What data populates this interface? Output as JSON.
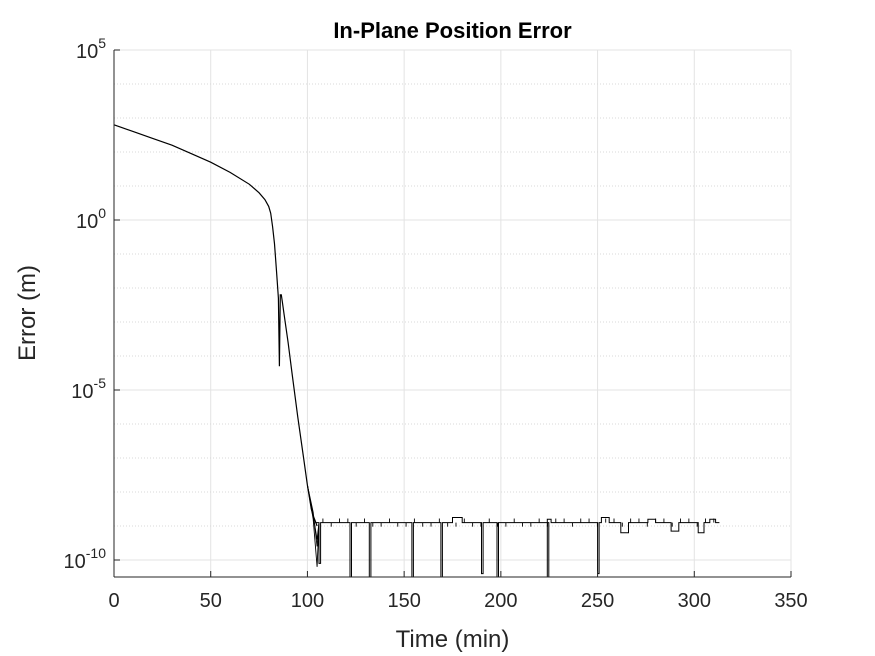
{
  "chart_data": {
    "type": "line",
    "title": "In-Plane Position Error",
    "xlabel": "Time (min)",
    "ylabel": "Error (m)",
    "xlim": [
      0,
      350
    ],
    "ylim_log10": [
      -10.5,
      5
    ],
    "y_scale": "log",
    "grid": true,
    "minor_grid": true,
    "line_color": "#000000",
    "x_ticks": [
      {
        "value": 0,
        "label": "0"
      },
      {
        "value": 50,
        "label": "50"
      },
      {
        "value": 100,
        "label": "100"
      },
      {
        "value": 150,
        "label": "150"
      },
      {
        "value": 200,
        "label": "200"
      },
      {
        "value": 250,
        "label": "250"
      },
      {
        "value": 300,
        "label": "300"
      },
      {
        "value": 350,
        "label": "350"
      }
    ],
    "y_ticks": [
      {
        "log10": 5,
        "base": "10",
        "exp": "5"
      },
      {
        "log10": 0,
        "base": "10",
        "exp": "0"
      },
      {
        "log10": -5,
        "base": "10",
        "exp": "-5"
      },
      {
        "log10": -10,
        "base": "10",
        "exp": "-10"
      }
    ],
    "series": [
      {
        "x": [
          0,
          10,
          20,
          30,
          40,
          50,
          60,
          70,
          75,
          78,
          80,
          81,
          82,
          83,
          84,
          85,
          85.5,
          86,
          86.5,
          87,
          88,
          90,
          92,
          95,
          98,
          100,
          102,
          103,
          104,
          105
        ],
        "log10_y": [
          2.8,
          2.6,
          2.4,
          2.2,
          1.95,
          1.7,
          1.4,
          1.05,
          0.8,
          0.6,
          0.4,
          0.2,
          -0.2,
          -0.7,
          -1.5,
          -2.3,
          -4.3,
          -2.2,
          -2.2,
          -2.4,
          -2.8,
          -3.6,
          -4.5,
          -5.8,
          -7.0,
          -7.8,
          -8.5,
          -8.7,
          -8.85,
          -9.0
        ]
      }
    ],
    "noise_floor": {
      "log10_level": -8.9,
      "x_start": 104,
      "x_end": 313,
      "downward_spikes": [
        {
          "x": 106,
          "log10_y": -10.1
        },
        {
          "x": 122,
          "log10_y": -10.5
        },
        {
          "x": 132,
          "log10_y": -10.5
        },
        {
          "x": 154,
          "log10_y": -10.5
        },
        {
          "x": 169,
          "log10_y": -10.5
        },
        {
          "x": 190,
          "log10_y": -10.4
        },
        {
          "x": 198,
          "log10_y": -10.5
        },
        {
          "x": 224,
          "log10_y": -10.5
        },
        {
          "x": 250,
          "log10_y": -10.4
        }
      ],
      "step_variation": [
        {
          "x0": 175,
          "x1": 180,
          "log10_y": -8.75
        },
        {
          "x0": 224,
          "x1": 226,
          "log10_y": -8.8
        },
        {
          "x0": 252,
          "x1": 256,
          "log10_y": -8.75
        },
        {
          "x0": 262,
          "x1": 266,
          "log10_y": -9.2
        },
        {
          "x0": 276,
          "x1": 280,
          "log10_y": -8.8
        },
        {
          "x0": 288,
          "x1": 292,
          "log10_y": -9.15
        },
        {
          "x0": 302,
          "x1": 305,
          "log10_y": -9.2
        },
        {
          "x0": 308,
          "x1": 311,
          "log10_y": -8.8
        }
      ]
    }
  }
}
